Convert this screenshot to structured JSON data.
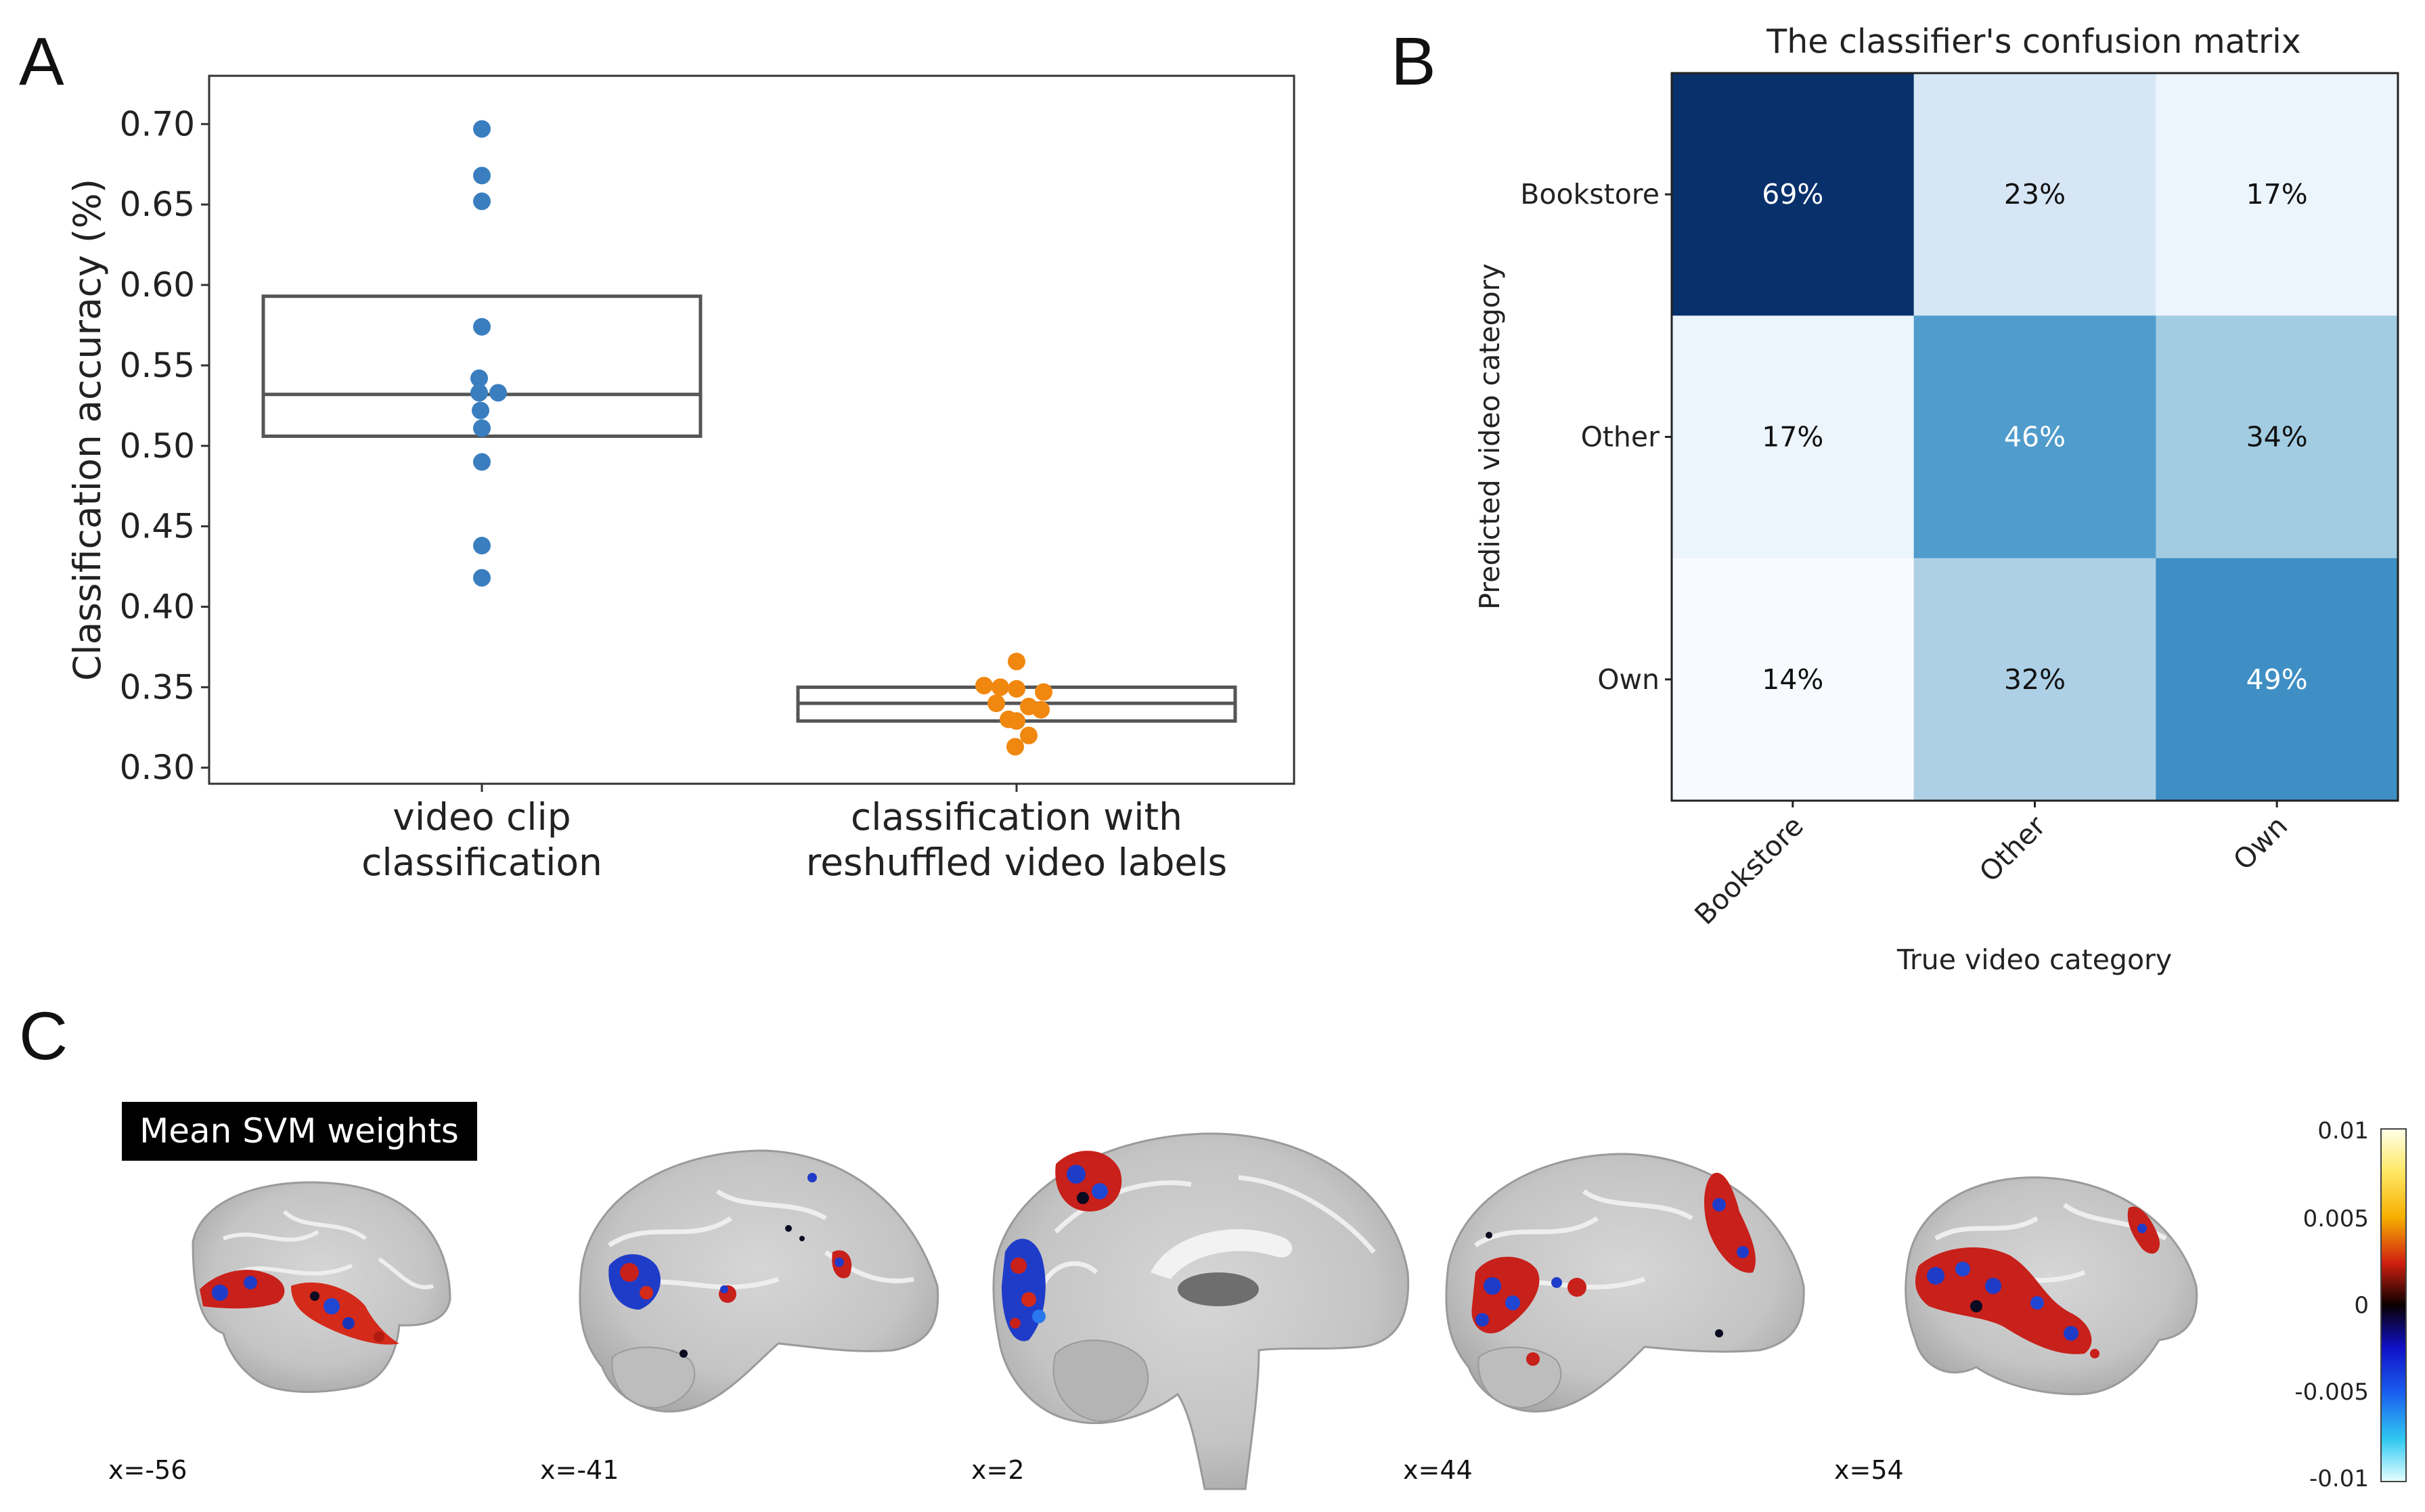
{
  "panels": {
    "a": "A",
    "b": "B",
    "c": "C"
  },
  "chart_data": [
    {
      "type": "scatter",
      "panel": "A",
      "ylabel": "Classification  accuracy (%)",
      "ylim": [
        0.29,
        0.73
      ],
      "yticks": [
        "0.30",
        "0.35",
        "0.40",
        "0.45",
        "0.50",
        "0.55",
        "0.60",
        "0.65",
        "0.70"
      ],
      "categories": [
        {
          "line1": "video clip",
          "line2": "classification"
        },
        {
          "line1": "classification with",
          "line2": "reshuffled video labels"
        }
      ],
      "series": [
        {
          "name": "video clip classification",
          "color": "#3a7ebf",
          "values": [
            0.697,
            0.668,
            0.652,
            0.574,
            0.542,
            0.533,
            0.533,
            0.522,
            0.511,
            0.49,
            0.438,
            0.418
          ],
          "box": {
            "low": 0.506,
            "median": 0.532,
            "high": 0.593
          }
        },
        {
          "name": "classification with reshuffled video labels",
          "color": "#f0870f",
          "values": [
            0.366,
            0.351,
            0.35,
            0.349,
            0.347,
            0.34,
            0.338,
            0.336,
            0.33,
            0.329,
            0.32,
            0.313
          ],
          "box": {
            "low": 0.329,
            "median": 0.34,
            "high": 0.35
          }
        }
      ]
    },
    {
      "type": "heatmap",
      "panel": "B",
      "title": "The classifier's confusion matrix",
      "xlabel": "True video category",
      "ylabel": "Predicted video category",
      "x": [
        "Bookstore",
        "Other",
        "Own"
      ],
      "y": [
        "Bookstore",
        "Other",
        "Own"
      ],
      "values": [
        [
          69,
          23,
          17
        ],
        [
          17,
          46,
          34
        ],
        [
          14,
          32,
          49
        ]
      ],
      "labels": [
        [
          "69%",
          "23%",
          "17%"
        ],
        [
          "17%",
          "46%",
          "34%"
        ],
        [
          "14%",
          "32%",
          "49%"
        ]
      ]
    }
  ],
  "brain": {
    "title": "Mean SVM weights",
    "slices": [
      "x=-56",
      "x=-41",
      "x=2",
      "x=44",
      "x=54"
    ],
    "colorbar_ticks": [
      "0.01",
      "0.005",
      "0",
      "-0.005",
      "-0.01"
    ],
    "colorbar_range": [
      -0.01,
      0.01
    ]
  }
}
